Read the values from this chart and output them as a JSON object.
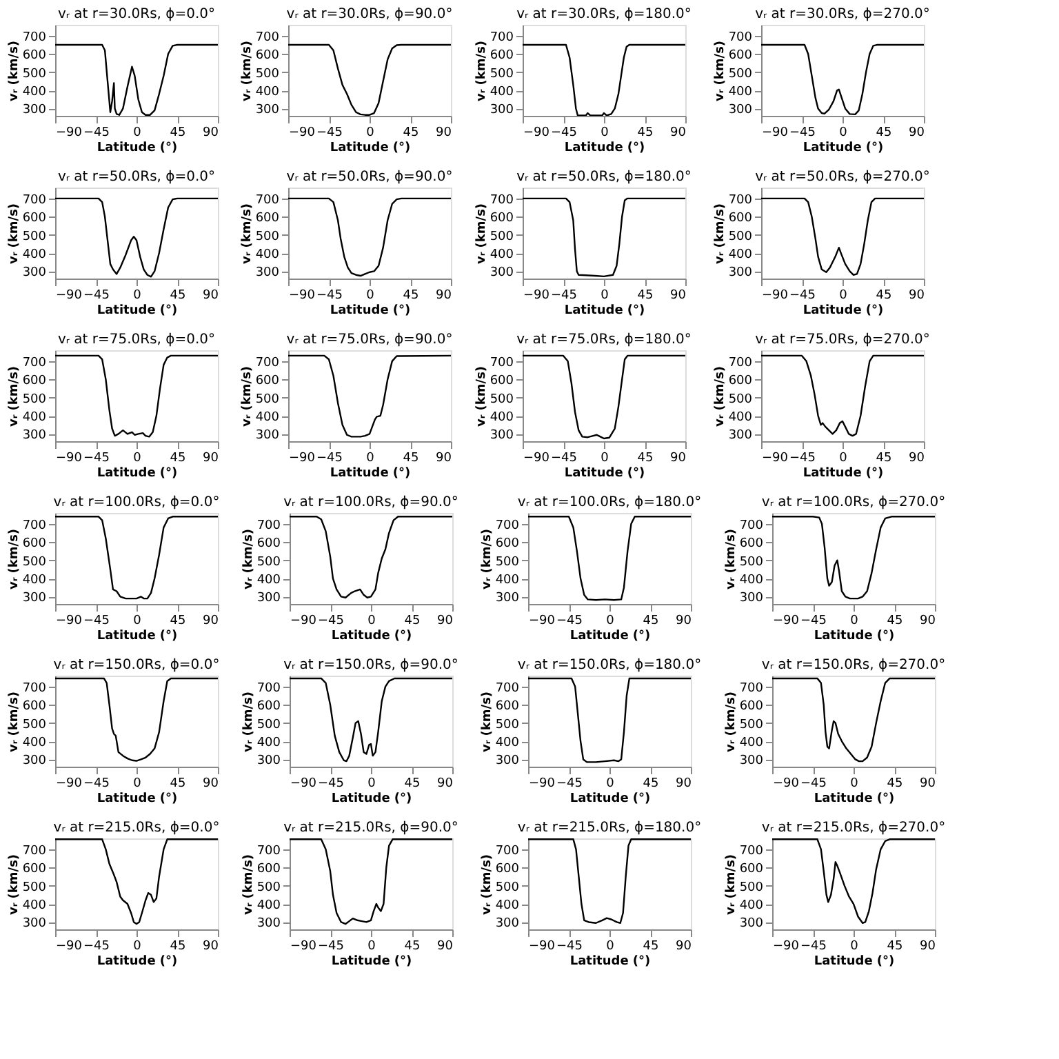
{
  "chart_data": [
    {
      "type": "line",
      "title": "vᵣ at r=30.0Rs, ϕ=0.0°",
      "xlabel": "Latitude (°)",
      "ylabel": "vᵣ (km/s)",
      "xlim": [
        -90,
        90
      ],
      "ylim": [
        260,
        760
      ],
      "xticks": [
        -90,
        -45,
        0,
        45,
        90
      ],
      "yticks": [
        300,
        400,
        500,
        600,
        700
      ],
      "color": "#000000",
      "x": [
        -90,
        -38,
        -35,
        -32,
        -29,
        -27,
        -25,
        -24,
        -22,
        -19,
        -15,
        -10,
        -5,
        -2,
        2,
        6,
        10,
        15,
        20,
        25,
        30,
        35,
        40,
        45,
        90
      ],
      "values": [
        650,
        650,
        620,
        450,
        280,
        340,
        440,
        300,
        270,
        265,
        300,
        420,
        530,
        480,
        350,
        280,
        265,
        265,
        290,
        380,
        480,
        600,
        645,
        650,
        650
      ]
    },
    {
      "type": "line",
      "title": "vᵣ at r=30.0Rs, ϕ=90.0°",
      "xlabel": "Latitude (°)",
      "ylabel": "vᵣ (km/s)",
      "xlim": [
        -90,
        90
      ],
      "ylim": [
        260,
        760
      ],
      "xticks": [
        -90,
        -45,
        0,
        45,
        90
      ],
      "yticks": [
        300,
        400,
        500,
        600,
        700
      ],
      "color": "#000000",
      "x": [
        -90,
        -45,
        -40,
        -35,
        -30,
        -25,
        -20,
        -15,
        -10,
        -5,
        0,
        5,
        10,
        15,
        20,
        25,
        30,
        35,
        90
      ],
      "values": [
        650,
        650,
        620,
        520,
        430,
        380,
        320,
        280,
        268,
        265,
        265,
        275,
        330,
        450,
        570,
        630,
        648,
        650,
        650
      ]
    },
    {
      "type": "line",
      "title": "vᵣ at r=30.0Rs, ϕ=180.0°",
      "xlabel": "Latitude (°)",
      "ylabel": "vᵣ (km/s)",
      "xlim": [
        -90,
        90
      ],
      "ylim": [
        260,
        760
      ],
      "xticks": [
        -90,
        -45,
        0,
        45,
        90
      ],
      "yticks": [
        300,
        400,
        500,
        600,
        700
      ],
      "color": "#000000",
      "x": [
        -90,
        -42,
        -38,
        -34,
        -31,
        -29,
        -20,
        -18,
        -15,
        -2,
        0,
        3,
        8,
        12,
        16,
        19,
        22,
        25,
        28,
        90
      ],
      "values": [
        650,
        650,
        580,
        430,
        300,
        262,
        262,
        275,
        262,
        262,
        275,
        262,
        270,
        300,
        380,
        480,
        580,
        640,
        650,
        650
      ]
    },
    {
      "type": "line",
      "title": "vᵣ at r=30.0Rs, ϕ=270.0°",
      "xlabel": "Latitude (°)",
      "ylabel": "vᵣ (km/s)",
      "xlim": [
        -90,
        90
      ],
      "ylim": [
        260,
        760
      ],
      "xticks": [
        -90,
        -45,
        0,
        45,
        90
      ],
      "yticks": [
        300,
        400,
        500,
        600,
        700
      ],
      "color": "#000000",
      "x": [
        -90,
        -42,
        -38,
        -34,
        -30,
        -27,
        -23,
        -20,
        -15,
        -10,
        -6,
        -4,
        -1,
        3,
        8,
        14,
        18,
        22,
        26,
        30,
        34,
        38,
        90
      ],
      "values": [
        650,
        650,
        600,
        480,
        360,
        300,
        275,
        272,
        295,
        340,
        400,
        405,
        360,
        300,
        270,
        268,
        290,
        380,
        500,
        600,
        645,
        650,
        650
      ]
    },
    {
      "type": "line",
      "title": "vᵣ at r=50.0Rs, ϕ=0.0°",
      "xlabel": "Latitude (°)",
      "ylabel": "vᵣ (km/s)",
      "xlim": [
        -90,
        90
      ],
      "ylim": [
        260,
        760
      ],
      "xticks": [
        -90,
        -45,
        0,
        45,
        90
      ],
      "yticks": [
        300,
        400,
        500,
        600,
        700
      ],
      "color": "#000000",
      "x": [
        -90,
        -42,
        -38,
        -35,
        -32,
        -29,
        -26,
        -22,
        -18,
        -12,
        -6,
        -3,
        0,
        4,
        8,
        12,
        16,
        20,
        25,
        30,
        35,
        40,
        45,
        90
      ],
      "values": [
        700,
        700,
        680,
        600,
        470,
        340,
        310,
        285,
        320,
        390,
        470,
        490,
        470,
        380,
        310,
        280,
        270,
        300,
        400,
        530,
        650,
        695,
        700,
        700
      ]
    },
    {
      "type": "line",
      "title": "vᵣ at r=50.0Rs, ϕ=90.0°",
      "xlabel": "Latitude (°)",
      "ylabel": "vᵣ (km/s)",
      "xlim": [
        -90,
        90
      ],
      "ylim": [
        260,
        760
      ],
      "xticks": [
        -90,
        -45,
        0,
        45,
        90
      ],
      "yticks": [
        300,
        400,
        500,
        600,
        700
      ],
      "color": "#000000",
      "x": [
        -90,
        -45,
        -40,
        -35,
        -32,
        -28,
        -24,
        -20,
        -15,
        -10,
        -5,
        0,
        5,
        10,
        15,
        20,
        25,
        30,
        35,
        90
      ],
      "values": [
        700,
        700,
        680,
        580,
        480,
        380,
        320,
        290,
        280,
        275,
        285,
        295,
        300,
        330,
        430,
        580,
        670,
        695,
        700,
        700
      ]
    },
    {
      "type": "line",
      "title": "vᵣ at r=50.0Rs, ϕ=180.0°",
      "xlabel": "Latitude (°)",
      "ylabel": "vᵣ (km/s)",
      "xlim": [
        -90,
        90
      ],
      "ylim": [
        260,
        760
      ],
      "xticks": [
        -90,
        -45,
        0,
        45,
        90
      ],
      "yticks": [
        300,
        400,
        500,
        600,
        700
      ],
      "color": "#000000",
      "x": [
        -90,
        -42,
        -38,
        -34,
        -32,
        -30,
        -28,
        -20,
        -10,
        0,
        10,
        14,
        17,
        20,
        23,
        26,
        90
      ],
      "values": [
        700,
        700,
        680,
        580,
        420,
        300,
        280,
        278,
        275,
        272,
        280,
        330,
        450,
        600,
        690,
        700,
        700
      ]
    },
    {
      "type": "line",
      "title": "vᵣ at r=50.0Rs, ϕ=270.0°",
      "xlabel": "Latitude (°)",
      "ylabel": "vᵣ (km/s)",
      "xlim": [
        -90,
        90
      ],
      "ylim": [
        260,
        760
      ],
      "xticks": [
        -90,
        -45,
        0,
        45,
        90
      ],
      "yticks": [
        300,
        400,
        500,
        600,
        700
      ],
      "color": "#000000",
      "x": [
        -90,
        -42,
        -38,
        -34,
        -30,
        -27,
        -23,
        -18,
        -14,
        -8,
        -4,
        -1,
        3,
        8,
        12,
        16,
        20,
        24,
        28,
        32,
        36,
        90
      ],
      "values": [
        700,
        700,
        680,
        600,
        480,
        380,
        310,
        295,
        320,
        380,
        430,
        390,
        340,
        300,
        280,
        285,
        340,
        450,
        580,
        680,
        700,
        700
      ]
    },
    {
      "type": "line",
      "title": "vᵣ at r=75.0Rs, ϕ=0.0°",
      "xlabel": "Latitude (°)",
      "ylabel": "vᵣ (km/s)",
      "xlim": [
        -90,
        90
      ],
      "ylim": [
        260,
        760
      ],
      "xticks": [
        -90,
        -45,
        0,
        45,
        90
      ],
      "yticks": [
        300,
        400,
        500,
        600,
        700
      ],
      "color": "#000000",
      "x": [
        -90,
        -42,
        -38,
        -34,
        -30,
        -27,
        -24,
        -20,
        -15,
        -10,
        -5,
        -2,
        2,
        7,
        10,
        14,
        18,
        22,
        26,
        30,
        34,
        38,
        90
      ],
      "values": [
        730,
        730,
        710,
        600,
        430,
        330,
        290,
        300,
        320,
        300,
        310,
        295,
        300,
        305,
        290,
        285,
        310,
        400,
        550,
        680,
        720,
        730,
        730
      ]
    },
    {
      "type": "line",
      "title": "vᵣ at r=75.0Rs, ϕ=90.0°",
      "xlabel": "Latitude (°)",
      "ylabel": "vᵣ (km/s)",
      "xlim": [
        -90,
        90
      ],
      "ylim": [
        260,
        760
      ],
      "xticks": [
        -90,
        -45,
        0,
        45,
        90
      ],
      "yticks": [
        300,
        400,
        500,
        600,
        700
      ],
      "color": "#000000",
      "x": [
        -90,
        -50,
        -45,
        -40,
        -35,
        -30,
        -25,
        -20,
        -15,
        -10,
        -5,
        0,
        3,
        6,
        8,
        12,
        15,
        20,
        25,
        30,
        90
      ],
      "values": [
        730,
        730,
        710,
        620,
        470,
        350,
        295,
        285,
        285,
        285,
        290,
        300,
        340,
        380,
        395,
        400,
        460,
        600,
        700,
        728,
        730
      ]
    },
    {
      "type": "line",
      "title": "vᵣ at r=75.0Rs, ϕ=180.0°",
      "xlabel": "Latitude (°)",
      "ylabel": "vᵣ (km/s)",
      "xlim": [
        -90,
        90
      ],
      "ylim": [
        260,
        760
      ],
      "xticks": [
        -90,
        -45,
        0,
        45,
        90
      ],
      "yticks": [
        300,
        400,
        500,
        600,
        700
      ],
      "color": "#000000",
      "x": [
        -90,
        -45,
        -40,
        -36,
        -32,
        -28,
        -24,
        -18,
        -12,
        -8,
        -4,
        0,
        6,
        12,
        16,
        20,
        23,
        26,
        90
      ],
      "values": [
        730,
        730,
        700,
        580,
        420,
        320,
        285,
        282,
        290,
        295,
        285,
        275,
        280,
        330,
        450,
        600,
        710,
        730,
        730
      ]
    },
    {
      "type": "line",
      "title": "vᵣ at r=75.0Rs, ϕ=270.0°",
      "xlabel": "Latitude (°)",
      "ylabel": "vᵣ (km/s)",
      "xlim": [
        -90,
        90
      ],
      "ylim": [
        260,
        760
      ],
      "xticks": [
        -90,
        -45,
        0,
        45,
        90
      ],
      "yticks": [
        300,
        400,
        500,
        600,
        700
      ],
      "color": "#000000",
      "x": [
        -90,
        -45,
        -40,
        -35,
        -31,
        -27,
        -24,
        -22,
        -19,
        -15,
        -11,
        -7,
        -3,
        0,
        3,
        7,
        11,
        15,
        20,
        25,
        30,
        34,
        90
      ],
      "values": [
        730,
        730,
        700,
        620,
        520,
        400,
        350,
        360,
        340,
        320,
        300,
        320,
        360,
        370,
        340,
        300,
        290,
        300,
        400,
        560,
        700,
        730,
        730
      ]
    },
    {
      "type": "line",
      "title": "vᵣ at r=100.0Rs, ϕ=0.0°",
      "xlabel": "Latitude (°)",
      "ylabel": "vᵣ (km/s)",
      "xlim": [
        -90,
        90
      ],
      "ylim": [
        260,
        760
      ],
      "xticks": [
        -90,
        -45,
        0,
        45,
        90
      ],
      "yticks": [
        300,
        400,
        500,
        600,
        700
      ],
      "color": "#000000",
      "x": [
        -90,
        -42,
        -38,
        -34,
        -29,
        -26,
        -22,
        -18,
        -12,
        -5,
        0,
        5,
        8,
        12,
        16,
        20,
        25,
        30,
        35,
        40,
        90
      ],
      "values": [
        740,
        740,
        720,
        620,
        450,
        340,
        330,
        300,
        290,
        290,
        290,
        300,
        290,
        290,
        320,
        400,
        530,
        680,
        730,
        740,
        740
      ]
    },
    {
      "type": "line",
      "title": "vᵣ at r=100.0Rs, ϕ=90.0°",
      "xlabel": "Latitude (°)",
      "ylabel": "vᵣ (km/s)",
      "xlim": [
        -90,
        90
      ],
      "ylim": [
        260,
        760
      ],
      "xticks": [
        -90,
        -45,
        0,
        45,
        90
      ],
      "yticks": [
        300,
        400,
        500,
        600,
        700
      ],
      "color": "#000000",
      "x": [
        -90,
        -60,
        -55,
        -50,
        -45,
        -42,
        -38,
        -33,
        -28,
        -22,
        -18,
        -12,
        -8,
        -4,
        0,
        5,
        8,
        12,
        16,
        20,
        25,
        30,
        90
      ],
      "values": [
        740,
        740,
        725,
        660,
        520,
        400,
        340,
        300,
        295,
        320,
        330,
        340,
        310,
        295,
        300,
        340,
        430,
        510,
        560,
        650,
        720,
        740,
        740
      ]
    },
    {
      "type": "line",
      "title": "vᵣ at r=100.0Rs, ϕ=180.0°",
      "xlabel": "Latitude (°)",
      "ylabel": "vᵣ (km/s)",
      "xlim": [
        -90,
        90
      ],
      "ylim": [
        260,
        760
      ],
      "xticks": [
        -90,
        -45,
        0,
        45,
        90
      ],
      "yticks": [
        300,
        400,
        500,
        600,
        700
      ],
      "color": "#000000",
      "x": [
        -90,
        -45,
        -40,
        -36,
        -32,
        -28,
        -24,
        -15,
        -5,
        5,
        13,
        16,
        20,
        24,
        28,
        90
      ],
      "values": [
        740,
        740,
        680,
        550,
        400,
        310,
        285,
        282,
        285,
        282,
        285,
        350,
        550,
        700,
        740,
        740
      ]
    },
    {
      "type": "line",
      "title": "vᵣ at r=100.0Rs, ϕ=270.0°",
      "xlabel": "Latitude (°)",
      "ylabel": "vᵣ (km/s)",
      "xlim": [
        -90,
        90
      ],
      "ylim": [
        260,
        760
      ],
      "xticks": [
        -90,
        -45,
        0,
        45,
        90
      ],
      "yticks": [
        300,
        400,
        500,
        600,
        700
      ],
      "color": "#000000",
      "x": [
        -90,
        -45,
        -38,
        -35,
        -32,
        -29,
        -27,
        -24,
        -21,
        -18,
        -16,
        -13,
        -9,
        -4,
        0,
        5,
        10,
        15,
        20,
        25,
        30,
        35,
        42,
        90
      ],
      "values": [
        740,
        740,
        735,
        700,
        570,
        400,
        360,
        380,
        470,
        500,
        440,
        330,
        300,
        290,
        290,
        290,
        300,
        330,
        430,
        560,
        680,
        730,
        740,
        740
      ]
    },
    {
      "type": "line",
      "title": "vᵣ at r=150.0Rs, ϕ=0.0°",
      "xlabel": "Latitude (°)",
      "ylabel": "vᵣ (km/s)",
      "xlim": [
        -90,
        90
      ],
      "ylim": [
        260,
        760
      ],
      "xticks": [
        -90,
        -45,
        0,
        45,
        90
      ],
      "yticks": [
        300,
        400,
        500,
        600,
        700
      ],
      "color": "#000000",
      "x": [
        -90,
        -36,
        -33,
        -30,
        -27,
        -25,
        -23,
        -20,
        -15,
        -10,
        -5,
        0,
        5,
        10,
        15,
        20,
        25,
        30,
        34,
        38,
        90
      ],
      "values": [
        745,
        745,
        720,
        600,
        470,
        440,
        430,
        340,
        320,
        305,
        295,
        292,
        300,
        310,
        330,
        360,
        450,
        620,
        730,
        745,
        745
      ]
    },
    {
      "type": "line",
      "title": "vᵣ at r=150.0Rs, ϕ=90.0°",
      "xlabel": "Latitude (°)",
      "ylabel": "vᵣ (km/s)",
      "xlim": [
        -90,
        90
      ],
      "ylim": [
        260,
        760
      ],
      "xticks": [
        -90,
        -45,
        0,
        45,
        90
      ],
      "yticks": [
        300,
        400,
        500,
        600,
        700
      ],
      "color": "#000000",
      "x": [
        -90,
        -55,
        -50,
        -45,
        -40,
        -35,
        -30,
        -27,
        -24,
        -20,
        -17,
        -14,
        -11,
        -8,
        -5,
        -2,
        0,
        2,
        5,
        8,
        12,
        16,
        20,
        26,
        90
      ],
      "values": [
        745,
        745,
        720,
        600,
        430,
        340,
        295,
        290,
        320,
        420,
        500,
        510,
        440,
        340,
        330,
        380,
        385,
        320,
        340,
        450,
        620,
        700,
        730,
        745,
        745
      ]
    },
    {
      "type": "line",
      "title": "vᵣ at r=150.0Rs, ϕ=180.0°",
      "xlabel": "Latitude (°)",
      "ylabel": "vᵣ (km/s)",
      "xlim": [
        -90,
        90
      ],
      "ylim": [
        260,
        760
      ],
      "xticks": [
        -90,
        -45,
        0,
        45,
        90
      ],
      "yticks": [
        300,
        400,
        500,
        600,
        700
      ],
      "color": "#000000",
      "x": [
        -90,
        -42,
        -38,
        -35,
        -32,
        -29,
        -25,
        -15,
        -5,
        5,
        10,
        13,
        16,
        19,
        22,
        90
      ],
      "values": [
        745,
        745,
        700,
        550,
        400,
        300,
        285,
        285,
        290,
        295,
        290,
        300,
        450,
        650,
        745,
        745
      ]
    },
    {
      "type": "line",
      "title": "vᵣ at r=150.0Rs, ϕ=270.0°",
      "xlabel": "Latitude (°)",
      "ylabel": "vᵣ (km/s)",
      "xlim": [
        -90,
        90
      ],
      "ylim": [
        260,
        760
      ],
      "xticks": [
        -90,
        -45,
        0,
        45,
        90
      ],
      "yticks": [
        300,
        400,
        500,
        600,
        700
      ],
      "color": "#000000",
      "x": [
        -90,
        -40,
        -36,
        -33,
        -31,
        -29,
        -27,
        -24,
        -22,
        -20,
        -17,
        -13,
        -8,
        -3,
        2,
        6,
        10,
        15,
        20,
        25,
        30,
        35,
        40,
        90
      ],
      "values": [
        745,
        745,
        720,
        600,
        450,
        370,
        360,
        460,
        510,
        500,
        440,
        400,
        360,
        330,
        300,
        290,
        290,
        310,
        370,
        500,
        620,
        720,
        745,
        745
      ]
    },
    {
      "type": "line",
      "title": "vᵣ at r=215.0Rs, ϕ=0.0°",
      "xlabel": "Latitude (°)",
      "ylabel": "vᵣ (km/s)",
      "xlim": [
        -90,
        90
      ],
      "ylim": [
        260,
        760
      ],
      "xticks": [
        -90,
        -45,
        0,
        45,
        90
      ],
      "yticks": [
        300,
        400,
        500,
        600,
        700
      ],
      "color": "#000000",
      "x": [
        -90,
        -38,
        -34,
        -30,
        -25,
        -22,
        -18,
        -15,
        -10,
        -6,
        -3,
        0,
        3,
        6,
        10,
        13,
        16,
        19,
        22,
        25,
        30,
        34,
        90
      ],
      "values": [
        755,
        755,
        700,
        620,
        560,
        520,
        440,
        420,
        400,
        350,
        300,
        290,
        300,
        350,
        420,
        460,
        450,
        410,
        430,
        550,
        700,
        755,
        755
      ]
    },
    {
      "type": "line",
      "title": "vᵣ at r=215.0Rs, ϕ=90.0°",
      "xlabel": "Latitude (°)",
      "ylabel": "vᵣ (km/s)",
      "xlim": [
        -90,
        90
      ],
      "ylim": [
        260,
        760
      ],
      "xticks": [
        -90,
        -45,
        0,
        45,
        90
      ],
      "yticks": [
        300,
        400,
        500,
        600,
        700
      ],
      "color": "#000000",
      "x": [
        -90,
        -55,
        -50,
        -45,
        -42,
        -38,
        -33,
        -28,
        -24,
        -20,
        -15,
        -10,
        -5,
        0,
        3,
        6,
        8,
        11,
        14,
        17,
        20,
        24,
        90
      ],
      "values": [
        755,
        755,
        700,
        580,
        450,
        350,
        300,
        290,
        305,
        320,
        310,
        305,
        300,
        310,
        360,
        400,
        380,
        360,
        400,
        600,
        720,
        755,
        755
      ]
    },
    {
      "type": "line",
      "title": "vᵣ at r=215.0Rs, ϕ=180.0°",
      "xlabel": "Latitude (°)",
      "ylabel": "vᵣ (km/s)",
      "xlim": [
        -90,
        90
      ],
      "ylim": [
        260,
        760
      ],
      "xticks": [
        -90,
        -45,
        0,
        45,
        90
      ],
      "yticks": [
        300,
        400,
        500,
        600,
        700
      ],
      "color": "#000000",
      "x": [
        -90,
        -40,
        -37,
        -34,
        -31,
        -28,
        -23,
        -15,
        -8,
        -3,
        2,
        8,
        12,
        15,
        18,
        21,
        24,
        90
      ],
      "values": [
        755,
        755,
        700,
        550,
        400,
        310,
        300,
        295,
        310,
        322,
        315,
        300,
        295,
        350,
        550,
        720,
        755,
        755
      ]
    },
    {
      "type": "line",
      "title": "vᵣ at r=215.0Rs, ϕ=270.0°",
      "xlabel": "Latitude (°)",
      "ylabel": "vᵣ (km/s)",
      "xlim": [
        -90,
        90
      ],
      "ylim": [
        260,
        760
      ],
      "xticks": [
        -90,
        -45,
        0,
        45,
        90
      ],
      "yticks": [
        300,
        400,
        500,
        600,
        700
      ],
      "color": "#000000",
      "x": [
        -90,
        -40,
        -36,
        -33,
        -30,
        -28,
        -25,
        -22,
        -20,
        -18,
        -15,
        -10,
        -5,
        0,
        5,
        10,
        13,
        17,
        21,
        25,
        30,
        35,
        40,
        90
      ],
      "values": [
        755,
        755,
        700,
        580,
        450,
        410,
        450,
        540,
        630,
        610,
        570,
        500,
        440,
        400,
        330,
        295,
        300,
        360,
        460,
        590,
        700,
        745,
        755,
        755
      ]
    }
  ]
}
